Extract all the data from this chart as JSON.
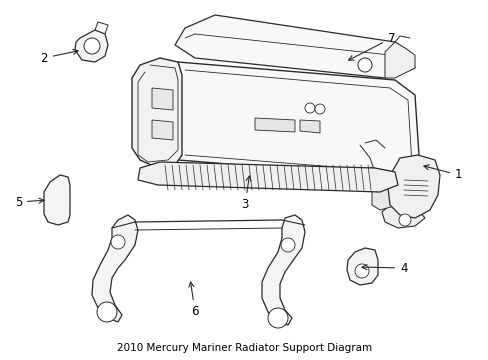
{
  "background_color": "#ffffff",
  "line_color": "#2a2a2a",
  "label_color": "#000000",
  "figsize": [
    4.89,
    3.6
  ],
  "dpi": 100,
  "title": "2010 Mercury Mariner Radiator Support Diagram",
  "title_fontsize": 7.5
}
